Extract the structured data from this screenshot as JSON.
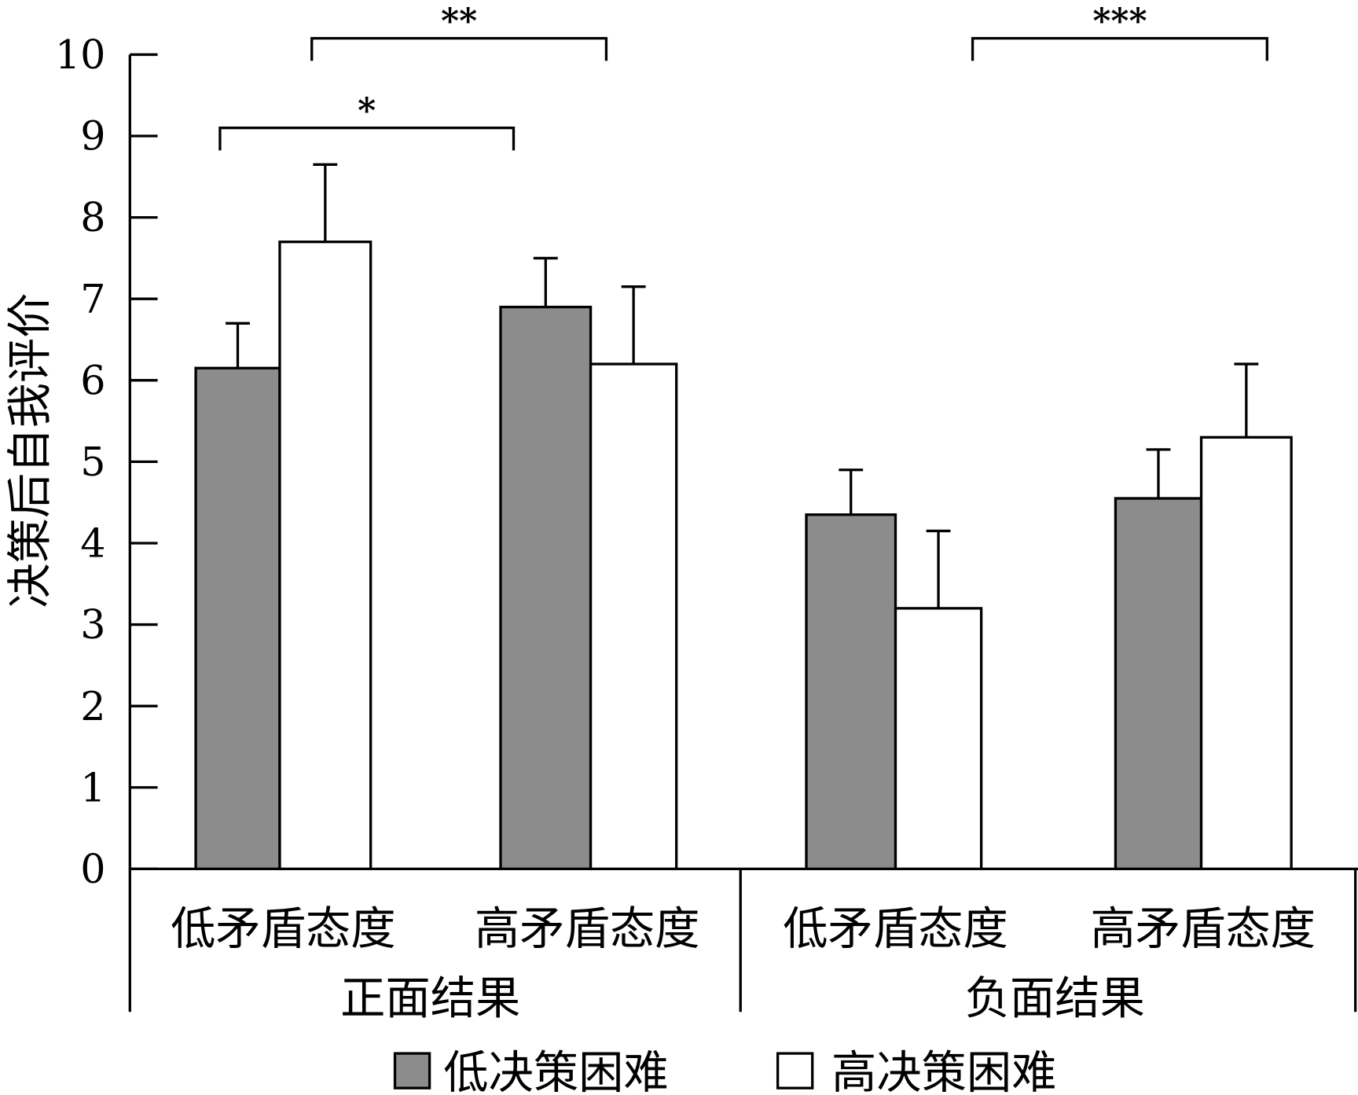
{
  "chart_data": {
    "type": "bar",
    "title": "",
    "ylabel": "决策后自我评价",
    "xlabel": "",
    "ylim": [
      0,
      10
    ],
    "yticks": [
      "0",
      "1",
      "2",
      "3",
      "4",
      "5",
      "6",
      "7",
      "8",
      "9",
      "10"
    ],
    "grid": false,
    "categories": [
      "低矛盾态度",
      "高矛盾态度",
      "低矛盾态度",
      "高矛盾态度"
    ],
    "groups": [
      "正面结果",
      "负面结果"
    ],
    "series": [
      {
        "name": "低决策困难",
        "color": "#8c8c8c",
        "values": [
          6.15,
          6.9,
          4.35,
          4.55
        ],
        "error_upper": [
          0.55,
          0.6,
          0.55,
          0.6
        ]
      },
      {
        "name": "高决策困难",
        "color": "#ffffff",
        "values": [
          7.7,
          6.2,
          3.2,
          5.3
        ],
        "error_upper": [
          0.95,
          0.95,
          0.95,
          0.9
        ]
      }
    ],
    "annotations": [
      {
        "label": "*",
        "from": "正面结果 低矛盾态度 低决策困难",
        "to": "正面结果 高矛盾态度 低决策困难",
        "level": 9.1
      },
      {
        "label": "**",
        "from": "正面结果 低矛盾态度 高决策困难",
        "to": "正面结果 高矛盾态度 高决策困难",
        "level": 10.2
      },
      {
        "label": "***",
        "from": "负面结果 低矛盾态度 高决策困难",
        "to": "负面结果 高矛盾态度 高决策困难",
        "level": 10.2
      }
    ],
    "legend": {
      "placement": "bottom",
      "entries": [
        "低决策困难",
        "高决策困难"
      ]
    }
  }
}
